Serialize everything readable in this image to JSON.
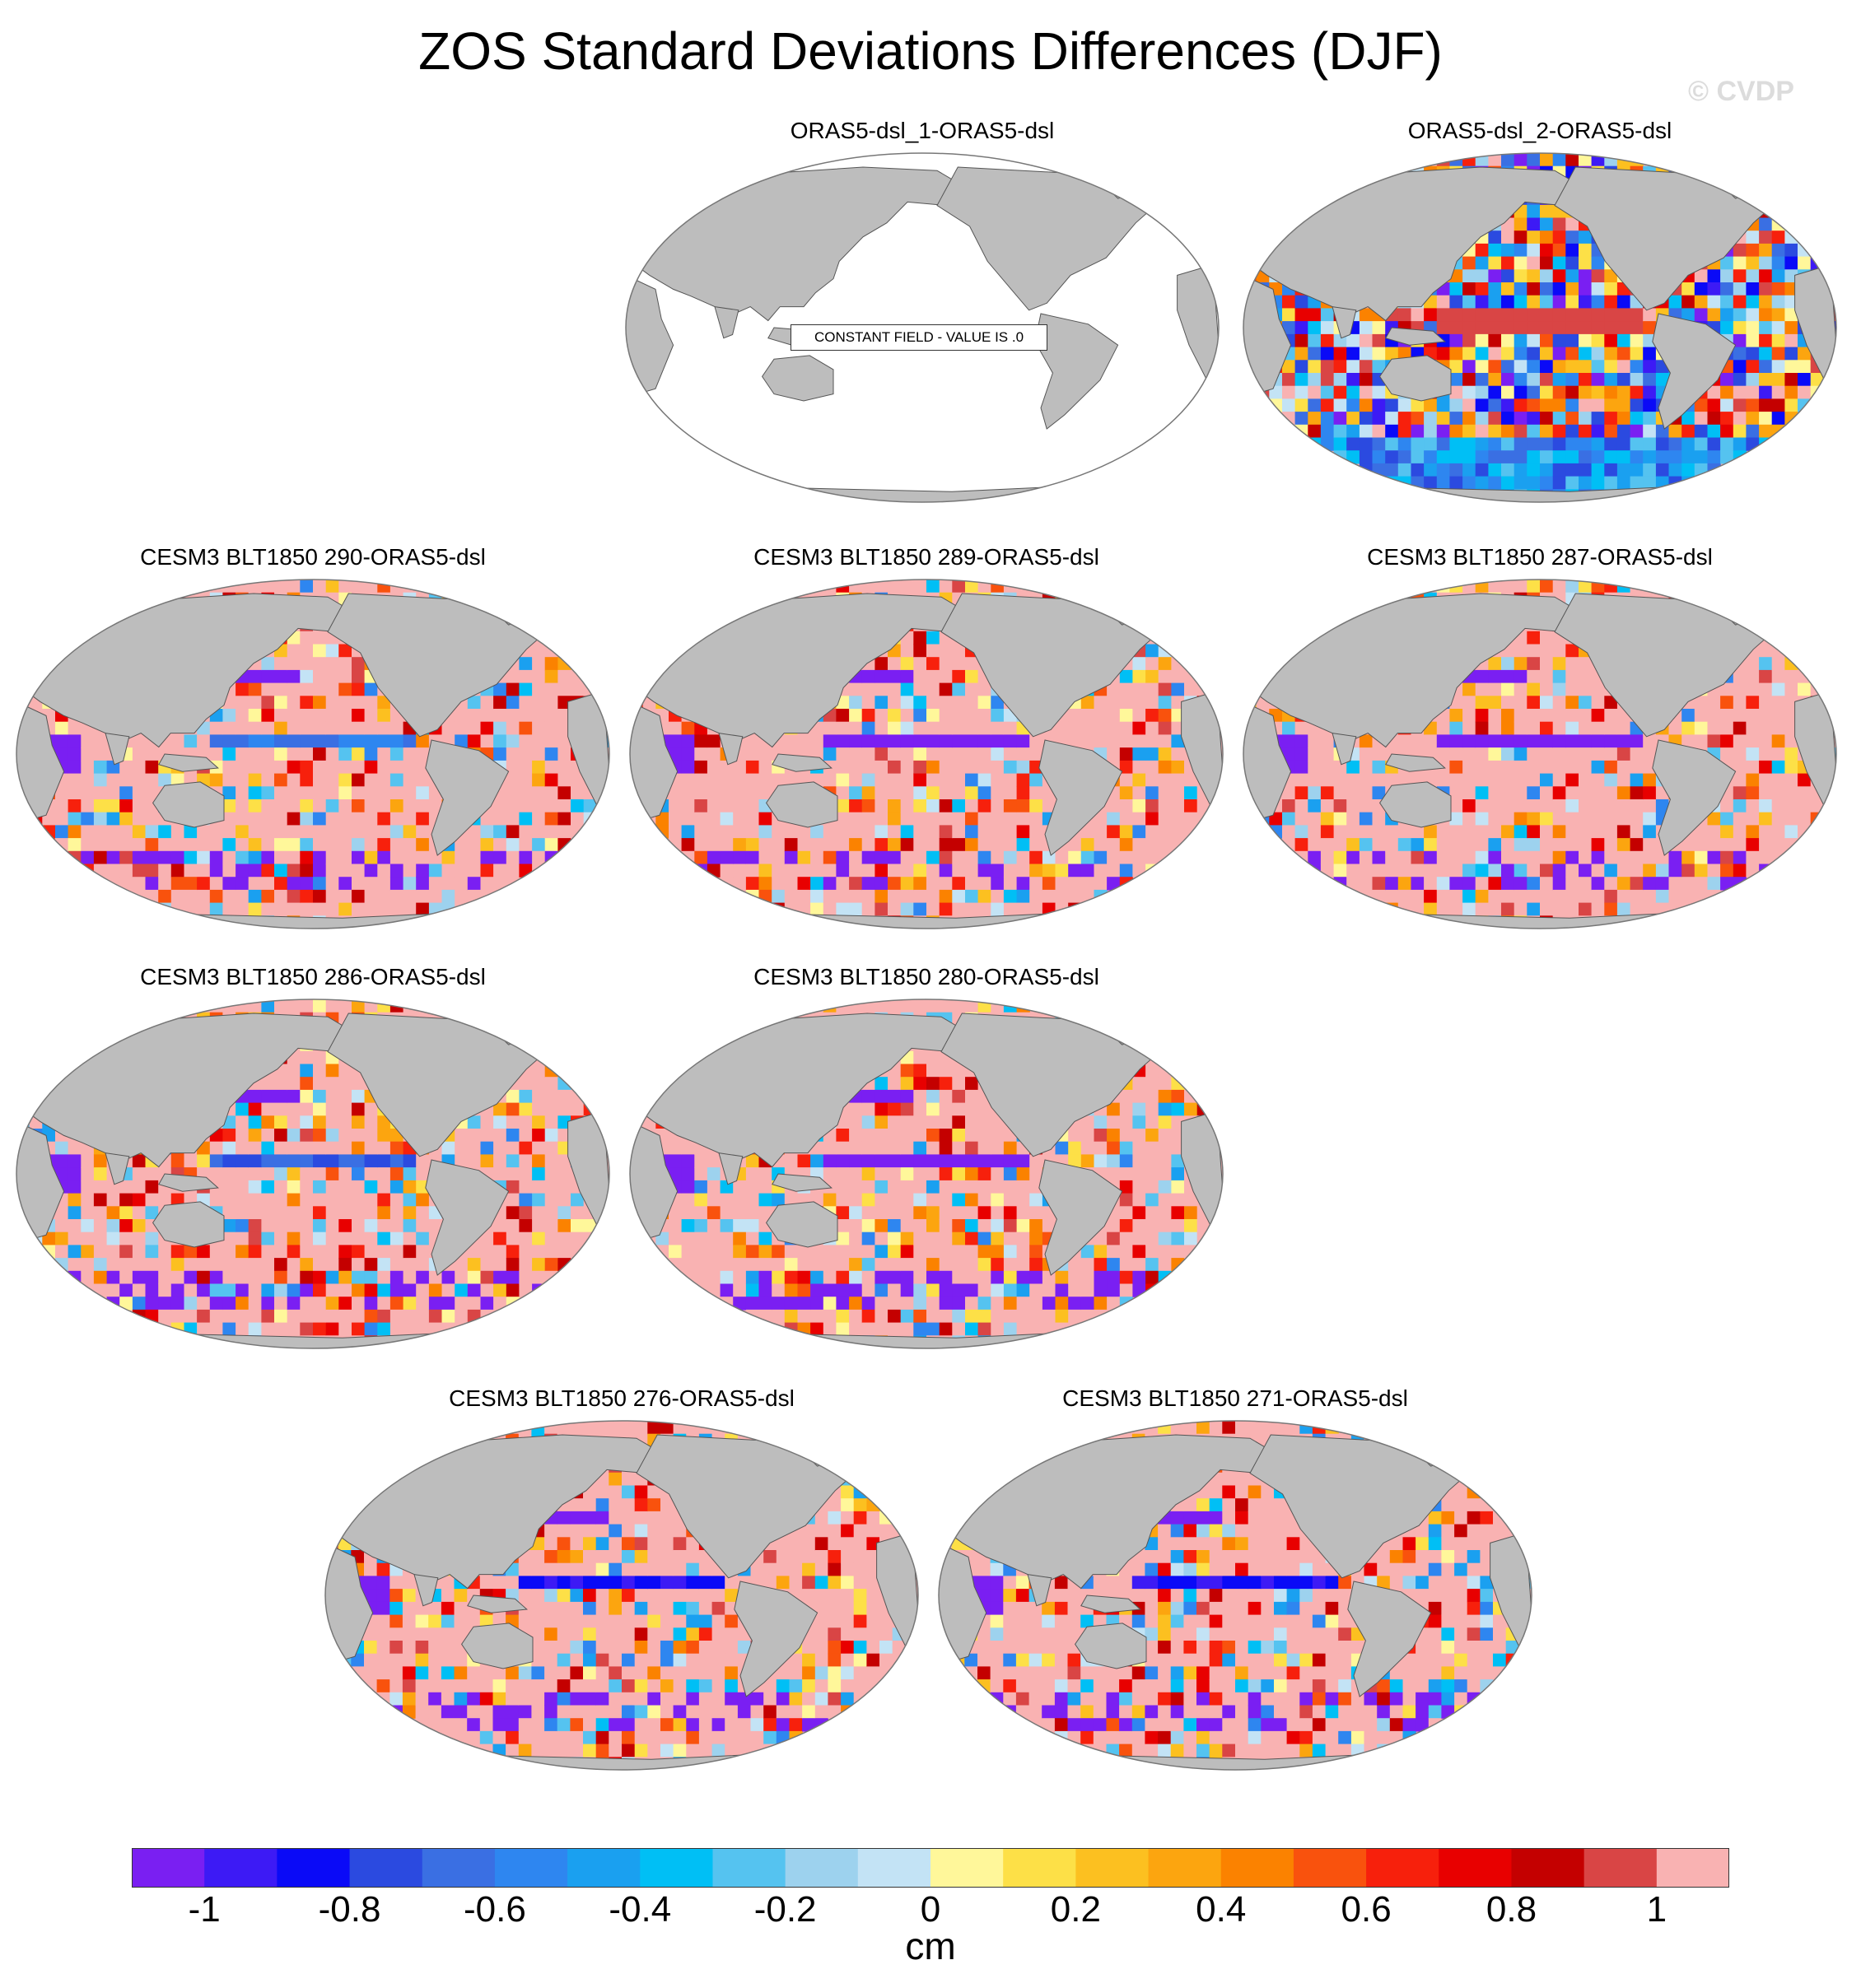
{
  "title": "ZOS Standard Deviations Differences (DJF)",
  "watermark": "© CVDP",
  "panels": [
    {
      "id": "p1",
      "title": "ORAS5-dsl_1-ORAS5-dsl",
      "note": "CONSTANT FIELD - VALUE IS .0",
      "constant": true
    },
    {
      "id": "p2",
      "title": "ORAS5-dsl_2-ORAS5-dsl",
      "style": "noisy",
      "eqAnomaly": 0.9
    },
    {
      "id": "p3",
      "title": "CESM3 BLT1850 290-ORAS5-dsl",
      "style": "model",
      "eqAnomaly": -0.6
    },
    {
      "id": "p4",
      "title": "CESM3 BLT1850 289-ORAS5-dsl",
      "style": "model",
      "eqAnomaly": -1.1
    },
    {
      "id": "p5",
      "title": "CESM3 BLT1850 287-ORAS5-dsl",
      "style": "model",
      "eqAnomaly": -1.1
    },
    {
      "id": "p6",
      "title": "CESM3 BLT1850 286-ORAS5-dsl",
      "style": "model",
      "eqAnomaly": -0.7
    },
    {
      "id": "p7",
      "title": "CESM3 BLT1850 280-ORAS5-dsl",
      "style": "model",
      "eqAnomaly": -1.1
    },
    {
      "id": "p8",
      "title": "CESM3 BLT1850 276-ORAS5-dsl",
      "style": "model",
      "eqAnomaly": -0.9
    },
    {
      "id": "p9",
      "title": "CESM3 BLT1850 271-ORAS5-dsl",
      "style": "model",
      "eqAnomaly": -0.9
    }
  ],
  "colorbar": {
    "units": "cm",
    "levels": [
      -1.1,
      -1,
      -0.9,
      -0.8,
      -0.7,
      -0.6,
      -0.5,
      -0.4,
      -0.3,
      -0.2,
      -0.1,
      0,
      0.1,
      0.2,
      0.3,
      0.4,
      0.5,
      0.6,
      0.7,
      0.8,
      0.9,
      1
    ],
    "colors": [
      "#7a1ff2",
      "#3d1af5",
      "#0a0af7",
      "#2b4ae0",
      "#3a6fe3",
      "#2e86f0",
      "#1aa0f0",
      "#00bff5",
      "#55c3f0",
      "#9dd2ee",
      "#c3e3f5",
      "#fff79a",
      "#fde047",
      "#fcc020",
      "#fca50f",
      "#fb8200",
      "#f9520d",
      "#f7200c",
      "#e80000",
      "#c40000",
      "#d94545",
      "#f9b2b2"
    ],
    "ticks": [
      "-1",
      "-0.8",
      "-0.6",
      "-0.4",
      "-0.2",
      "0",
      "0.2",
      "0.4",
      "0.6",
      "0.8",
      "1"
    ]
  },
  "chart_data": {
    "type": "heatmap",
    "title": "ZOS Standard Deviations Differences (DJF)",
    "projection": "Robinson (Pacific-centered)",
    "units": "cm",
    "range": [
      -1.1,
      1.1
    ],
    "panels": [
      "ORAS5-dsl_1-ORAS5-dsl",
      "ORAS5-dsl_2-ORAS5-dsl",
      "CESM3 BLT1850 290-ORAS5-dsl",
      "CESM3 BLT1850 289-ORAS5-dsl",
      "CESM3 BLT1850 287-ORAS5-dsl",
      "CESM3 BLT1850 286-ORAS5-dsl",
      "CESM3 BLT1850 280-ORAS5-dsl",
      "CESM3 BLT1850 276-ORAS5-dsl",
      "CESM3 BLT1850 271-ORAS5-dsl"
    ],
    "constant_field_panel": {
      "panel": "ORAS5-dsl_1-ORAS5-dsl",
      "value": 0
    }
  }
}
